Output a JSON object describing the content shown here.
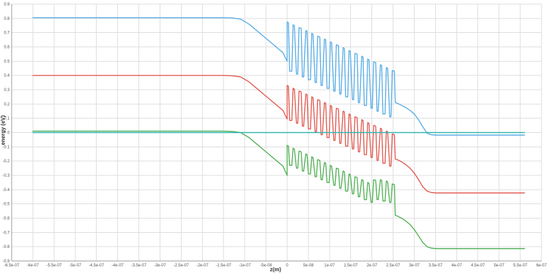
{
  "chart_data": {
    "type": "line",
    "title": "",
    "xlabel": "z(m)",
    "ylabel": "energy (eV)",
    "xlim": [
      -6.5e-07,
      6e-07
    ],
    "ylim": [
      -0.9,
      0.9
    ],
    "grid": true,
    "legend": "none",
    "x_ticks": [
      {
        "value": -6.5e-07,
        "label": "-6.5e-07"
      },
      {
        "value": -6e-07,
        "label": "-6e-07"
      },
      {
        "value": -5.5e-07,
        "label": "-5.5e-07"
      },
      {
        "value": -5e-07,
        "label": "-5e-07"
      },
      {
        "value": -4.5e-07,
        "label": "-4.5e-07"
      },
      {
        "value": -4e-07,
        "label": "-4e-07"
      },
      {
        "value": -3.5e-07,
        "label": "-3.5e-07"
      },
      {
        "value": -3e-07,
        "label": "-3e-07"
      },
      {
        "value": -2.5e-07,
        "label": "-2.5e-07"
      },
      {
        "value": -2e-07,
        "label": "-2e-07"
      },
      {
        "value": -1.5e-07,
        "label": "-1.5e-07"
      },
      {
        "value": -1e-07,
        "label": "-1e-07"
      },
      {
        "value": -5e-08,
        "label": "-5e-08"
      },
      {
        "value": 0,
        "label": "0"
      },
      {
        "value": 5e-08,
        "label": "5e-08"
      },
      {
        "value": 1e-07,
        "label": "1e-07"
      },
      {
        "value": 1.5e-07,
        "label": "1.5e-07"
      },
      {
        "value": 2e-07,
        "label": "2e-07"
      },
      {
        "value": 2.5e-07,
        "label": "2.5e-07"
      },
      {
        "value": 3e-07,
        "label": "3e-07"
      },
      {
        "value": 3.5e-07,
        "label": "3.5e-07"
      },
      {
        "value": 4e-07,
        "label": "4e-07"
      },
      {
        "value": 4.5e-07,
        "label": "4.5e-07"
      },
      {
        "value": 5e-07,
        "label": "5e-07"
      },
      {
        "value": 5.5e-07,
        "label": "5.5e-07"
      },
      {
        "value": 6e-07,
        "label": "6e-07"
      }
    ],
    "y_ticks": [
      {
        "value": 0.9,
        "label": "0.9"
      },
      {
        "value": 0.8,
        "label": "0.8"
      },
      {
        "value": 0.7,
        "label": "0.7"
      },
      {
        "value": 0.6,
        "label": "0.6"
      },
      {
        "value": 0.5,
        "label": "0.5"
      },
      {
        "value": 0.4,
        "label": "0.4"
      },
      {
        "value": 0.3,
        "label": "0.3"
      },
      {
        "value": 0.2,
        "label": "0.2"
      },
      {
        "value": 0.1,
        "label": "0.1"
      },
      {
        "value": 0,
        "label": "0"
      },
      {
        "value": -0.1,
        "label": "-0.1"
      },
      {
        "value": -0.2,
        "label": "-0.2"
      },
      {
        "value": -0.3,
        "label": "-0.3"
      },
      {
        "value": -0.4,
        "label": "-0.4"
      },
      {
        "value": -0.5,
        "label": "-0.5"
      },
      {
        "value": -0.6,
        "label": "-0.6"
      },
      {
        "value": -0.7,
        "label": "-0.7"
      },
      {
        "value": -0.8,
        "label": "-0.8"
      },
      {
        "value": -0.9,
        "label": "-0.9"
      }
    ],
    "series": [
      {
        "color": "#5aaee6",
        "x": [
          -6e-07,
          -1.5e-07,
          -1.3e-07,
          -1.1e-07,
          -9e-08,
          -7e-08,
          -5e-08,
          -3e-08,
          -1e-08,
          0,
          0,
          3e-09,
          6e-09,
          1.1e-08,
          1.4e-08,
          1.7e-08,
          2.2e-08,
          2.5e-08,
          2.8e-08,
          3.3e-08,
          3.6e-08,
          3.9e-08,
          4.4e-08,
          4.7e-08,
          5e-08,
          5.5e-08,
          5.8e-08,
          6.1e-08,
          6.6e-08,
          6.9e-08,
          7.2e-08,
          7.7e-08,
          8e-08,
          8.3e-08,
          8.8e-08,
          9.1e-08,
          9.4e-08,
          9.9e-08,
          1.02e-07,
          1.05e-07,
          1.1e-07,
          1.13e-07,
          1.16e-07,
          1.21e-07,
          1.24e-07,
          1.27e-07,
          1.32e-07,
          1.35e-07,
          1.38e-07,
          1.43e-07,
          1.46e-07,
          1.49e-07,
          1.54e-07,
          1.57e-07,
          1.6e-07,
          1.65e-07,
          1.68e-07,
          1.71e-07,
          1.76e-07,
          1.79e-07,
          1.82e-07,
          1.87e-07,
          1.9e-07,
          1.93e-07,
          1.98e-07,
          2.01e-07,
          2.04e-07,
          2.09e-07,
          2.12e-07,
          2.15e-07,
          2.2e-07,
          2.23e-07,
          2.26e-07,
          2.31e-07,
          2.34e-07,
          2.37e-07,
          2.42e-07,
          2.45e-07,
          2.48e-07,
          2.53e-07,
          2.55e-07,
          2.6e-07,
          2.7e-07,
          2.8e-07,
          2.9e-07,
          3e-07,
          3.1e-07,
          3.2e-07,
          3.3e-07,
          3.4e-07,
          3.5e-07,
          3.6e-07,
          3.7e-07,
          5.6e-07
        ],
        "y": [
          0.805,
          0.805,
          0.803,
          0.795,
          0.76,
          0.71,
          0.66,
          0.61,
          0.56,
          0.5,
          0.775,
          0.77,
          0.43,
          0.43,
          0.755,
          0.75,
          0.41,
          0.41,
          0.735,
          0.73,
          0.39,
          0.39,
          0.715,
          0.71,
          0.37,
          0.37,
          0.695,
          0.69,
          0.35,
          0.35,
          0.675,
          0.67,
          0.33,
          0.33,
          0.655,
          0.65,
          0.31,
          0.31,
          0.635,
          0.63,
          0.29,
          0.29,
          0.615,
          0.61,
          0.27,
          0.27,
          0.595,
          0.59,
          0.25,
          0.25,
          0.575,
          0.57,
          0.23,
          0.23,
          0.555,
          0.55,
          0.21,
          0.21,
          0.535,
          0.53,
          0.19,
          0.19,
          0.515,
          0.51,
          0.17,
          0.17,
          0.495,
          0.49,
          0.15,
          0.15,
          0.475,
          0.47,
          0.13,
          0.13,
          0.455,
          0.45,
          0.11,
          0.11,
          0.435,
          0.43,
          0.21,
          0.205,
          0.19,
          0.175,
          0.155,
          0.13,
          0.09,
          0.04,
          -0.005,
          -0.015,
          -0.018,
          -0.018,
          -0.018,
          -0.018
        ]
      },
      {
        "color": "#e25a52",
        "x": [
          -6e-07,
          -1.5e-07,
          -1.3e-07,
          -1.1e-07,
          -9e-08,
          -7e-08,
          -5e-08,
          -3e-08,
          -1e-08,
          0,
          0,
          3e-09,
          6e-09,
          1.1e-08,
          1.4e-08,
          1.7e-08,
          2.2e-08,
          2.5e-08,
          2.8e-08,
          3.3e-08,
          3.6e-08,
          3.9e-08,
          4.4e-08,
          4.7e-08,
          5e-08,
          5.5e-08,
          5.8e-08,
          6.1e-08,
          6.6e-08,
          6.9e-08,
          7.2e-08,
          7.7e-08,
          8e-08,
          8.3e-08,
          8.8e-08,
          9.1e-08,
          9.4e-08,
          9.9e-08,
          1.02e-07,
          1.05e-07,
          1.1e-07,
          1.13e-07,
          1.16e-07,
          1.21e-07,
          1.24e-07,
          1.27e-07,
          1.32e-07,
          1.35e-07,
          1.38e-07,
          1.43e-07,
          1.46e-07,
          1.49e-07,
          1.54e-07,
          1.57e-07,
          1.6e-07,
          1.65e-07,
          1.68e-07,
          1.71e-07,
          1.76e-07,
          1.79e-07,
          1.82e-07,
          1.87e-07,
          1.9e-07,
          1.93e-07,
          1.98e-07,
          2.01e-07,
          2.04e-07,
          2.09e-07,
          2.12e-07,
          2.15e-07,
          2.2e-07,
          2.23e-07,
          2.26e-07,
          2.31e-07,
          2.34e-07,
          2.37e-07,
          2.42e-07,
          2.45e-07,
          2.48e-07,
          2.53e-07,
          2.55e-07,
          2.6e-07,
          2.7e-07,
          2.8e-07,
          2.9e-07,
          3e-07,
          3.1e-07,
          3.2e-07,
          3.3e-07,
          3.4e-07,
          3.5e-07,
          3.6e-07,
          3.7e-07,
          5.6e-07
        ],
        "y": [
          0.4,
          0.4,
          0.398,
          0.39,
          0.355,
          0.305,
          0.255,
          0.205,
          0.155,
          0.095,
          0.33,
          0.325,
          0.085,
          0.085,
          0.31,
          0.305,
          0.065,
          0.065,
          0.29,
          0.285,
          0.045,
          0.045,
          0.27,
          0.265,
          0.025,
          0.025,
          0.25,
          0.245,
          0.005,
          0.005,
          0.23,
          0.225,
          -0.015,
          -0.015,
          0.21,
          0.205,
          -0.035,
          -0.035,
          0.19,
          0.185,
          -0.055,
          -0.055,
          0.17,
          0.165,
          -0.075,
          -0.075,
          0.15,
          0.145,
          -0.095,
          -0.095,
          0.13,
          0.125,
          -0.115,
          -0.115,
          0.11,
          0.105,
          -0.135,
          -0.135,
          0.09,
          0.085,
          -0.155,
          -0.155,
          0.07,
          0.065,
          -0.175,
          -0.175,
          0.05,
          0.045,
          -0.195,
          -0.195,
          0.03,
          0.025,
          -0.215,
          -0.215,
          0.01,
          0.005,
          -0.235,
          -0.235,
          -0.01,
          -0.015,
          -0.185,
          -0.19,
          -0.205,
          -0.225,
          -0.25,
          -0.285,
          -0.33,
          -0.38,
          -0.41,
          -0.42,
          -0.423,
          -0.423,
          -0.423,
          -0.423
        ]
      },
      {
        "color": "#52b156",
        "x": [
          -6e-07,
          -1.5e-07,
          -1.3e-07,
          -1.1e-07,
          -9e-08,
          -7e-08,
          -5e-08,
          -3e-08,
          -1e-08,
          0,
          0,
          3e-09,
          6e-09,
          1.1e-08,
          1.4e-08,
          1.7e-08,
          2.2e-08,
          2.5e-08,
          2.8e-08,
          3.3e-08,
          3.6e-08,
          3.9e-08,
          4.4e-08,
          4.7e-08,
          5e-08,
          5.5e-08,
          5.8e-08,
          6.1e-08,
          6.6e-08,
          6.9e-08,
          7.2e-08,
          7.7e-08,
          8e-08,
          8.3e-08,
          8.8e-08,
          9.1e-08,
          9.4e-08,
          9.9e-08,
          1.02e-07,
          1.05e-07,
          1.1e-07,
          1.13e-07,
          1.16e-07,
          1.21e-07,
          1.24e-07,
          1.27e-07,
          1.32e-07,
          1.35e-07,
          1.38e-07,
          1.43e-07,
          1.46e-07,
          1.49e-07,
          1.54e-07,
          1.57e-07,
          1.6e-07,
          1.65e-07,
          1.68e-07,
          1.71e-07,
          1.76e-07,
          1.79e-07,
          1.82e-07,
          1.87e-07,
          1.9e-07,
          1.93e-07,
          1.98e-07,
          2.01e-07,
          2.04e-07,
          2.09e-07,
          2.12e-07,
          2.15e-07,
          2.2e-07,
          2.23e-07,
          2.26e-07,
          2.31e-07,
          2.34e-07,
          2.37e-07,
          2.42e-07,
          2.45e-07,
          2.48e-07,
          2.53e-07,
          2.55e-07,
          2.6e-07,
          2.7e-07,
          2.8e-07,
          2.9e-07,
          3e-07,
          3.1e-07,
          3.2e-07,
          3.3e-07,
          3.4e-07,
          3.5e-07,
          3.6e-07,
          3.7e-07,
          5.6e-07
        ],
        "y": [
          0.01,
          0.01,
          0.008,
          0.0,
          -0.035,
          -0.085,
          -0.135,
          -0.185,
          -0.235,
          -0.3,
          -0.09,
          -0.095,
          -0.23,
          -0.23,
          -0.11,
          -0.115,
          -0.25,
          -0.25,
          -0.13,
          -0.135,
          -0.27,
          -0.27,
          -0.15,
          -0.155,
          -0.29,
          -0.29,
          -0.17,
          -0.175,
          -0.31,
          -0.31,
          -0.19,
          -0.195,
          -0.33,
          -0.33,
          -0.21,
          -0.215,
          -0.35,
          -0.35,
          -0.23,
          -0.235,
          -0.37,
          -0.37,
          -0.25,
          -0.255,
          -0.39,
          -0.39,
          -0.27,
          -0.275,
          -0.41,
          -0.41,
          -0.29,
          -0.295,
          -0.43,
          -0.43,
          -0.31,
          -0.315,
          -0.45,
          -0.45,
          -0.33,
          -0.335,
          -0.47,
          -0.47,
          -0.35,
          -0.355,
          -0.49,
          -0.49,
          -0.33,
          -0.335,
          -0.47,
          -0.47,
          -0.33,
          -0.335,
          -0.48,
          -0.48,
          -0.34,
          -0.345,
          -0.49,
          -0.49,
          -0.36,
          -0.365,
          -0.58,
          -0.585,
          -0.6,
          -0.62,
          -0.645,
          -0.68,
          -0.725,
          -0.77,
          -0.8,
          -0.81,
          -0.813,
          -0.813,
          -0.813,
          -0.813
        ]
      },
      {
        "color": "#2fb5ad",
        "x": [
          -6e-07,
          5.6e-07
        ],
        "y": [
          0.0,
          0.0
        ]
      }
    ]
  }
}
